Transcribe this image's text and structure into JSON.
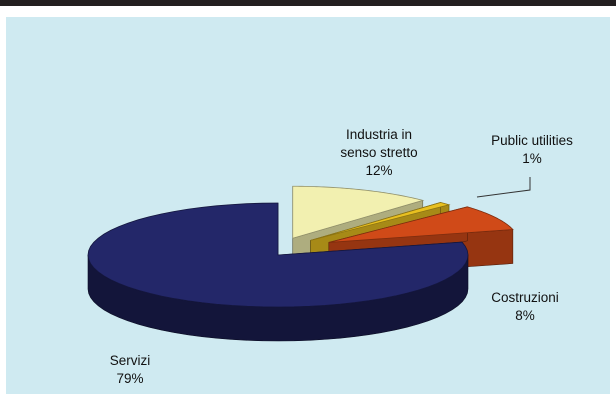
{
  "colors": {
    "background": "#cfeaf1",
    "top_bar": "#231f20",
    "servizi": "#232769",
    "industria": "#f2f0b0",
    "public_utilities": "#e8c020",
    "costruzioni": "#d04a18"
  },
  "chart_data": {
    "type": "pie",
    "style": "3d-exploded",
    "title": "",
    "slices": [
      {
        "name": "Servizi",
        "value": 79,
        "label_pct": "79%",
        "color": "#232769"
      },
      {
        "name": "Industria in senso stretto",
        "value": 12,
        "label_pct": "12%",
        "color": "#f2f0b0"
      },
      {
        "name": "Public utilities",
        "value": 1,
        "label_pct": "1%",
        "color": "#e8c020"
      },
      {
        "name": "Costruzioni",
        "value": 8,
        "label_pct": "8%",
        "color": "#d04a18"
      }
    ],
    "labels": {
      "industria_line1": "Industria in",
      "industria_line2": "senso stretto",
      "industria_pct": "12%",
      "public_name": "Public utilities",
      "public_pct": "1%",
      "costruzioni_name": "Costruzioni",
      "costruzioni_pct": "8%",
      "servizi_name": "Servizi",
      "servizi_pct": "79%"
    }
  }
}
